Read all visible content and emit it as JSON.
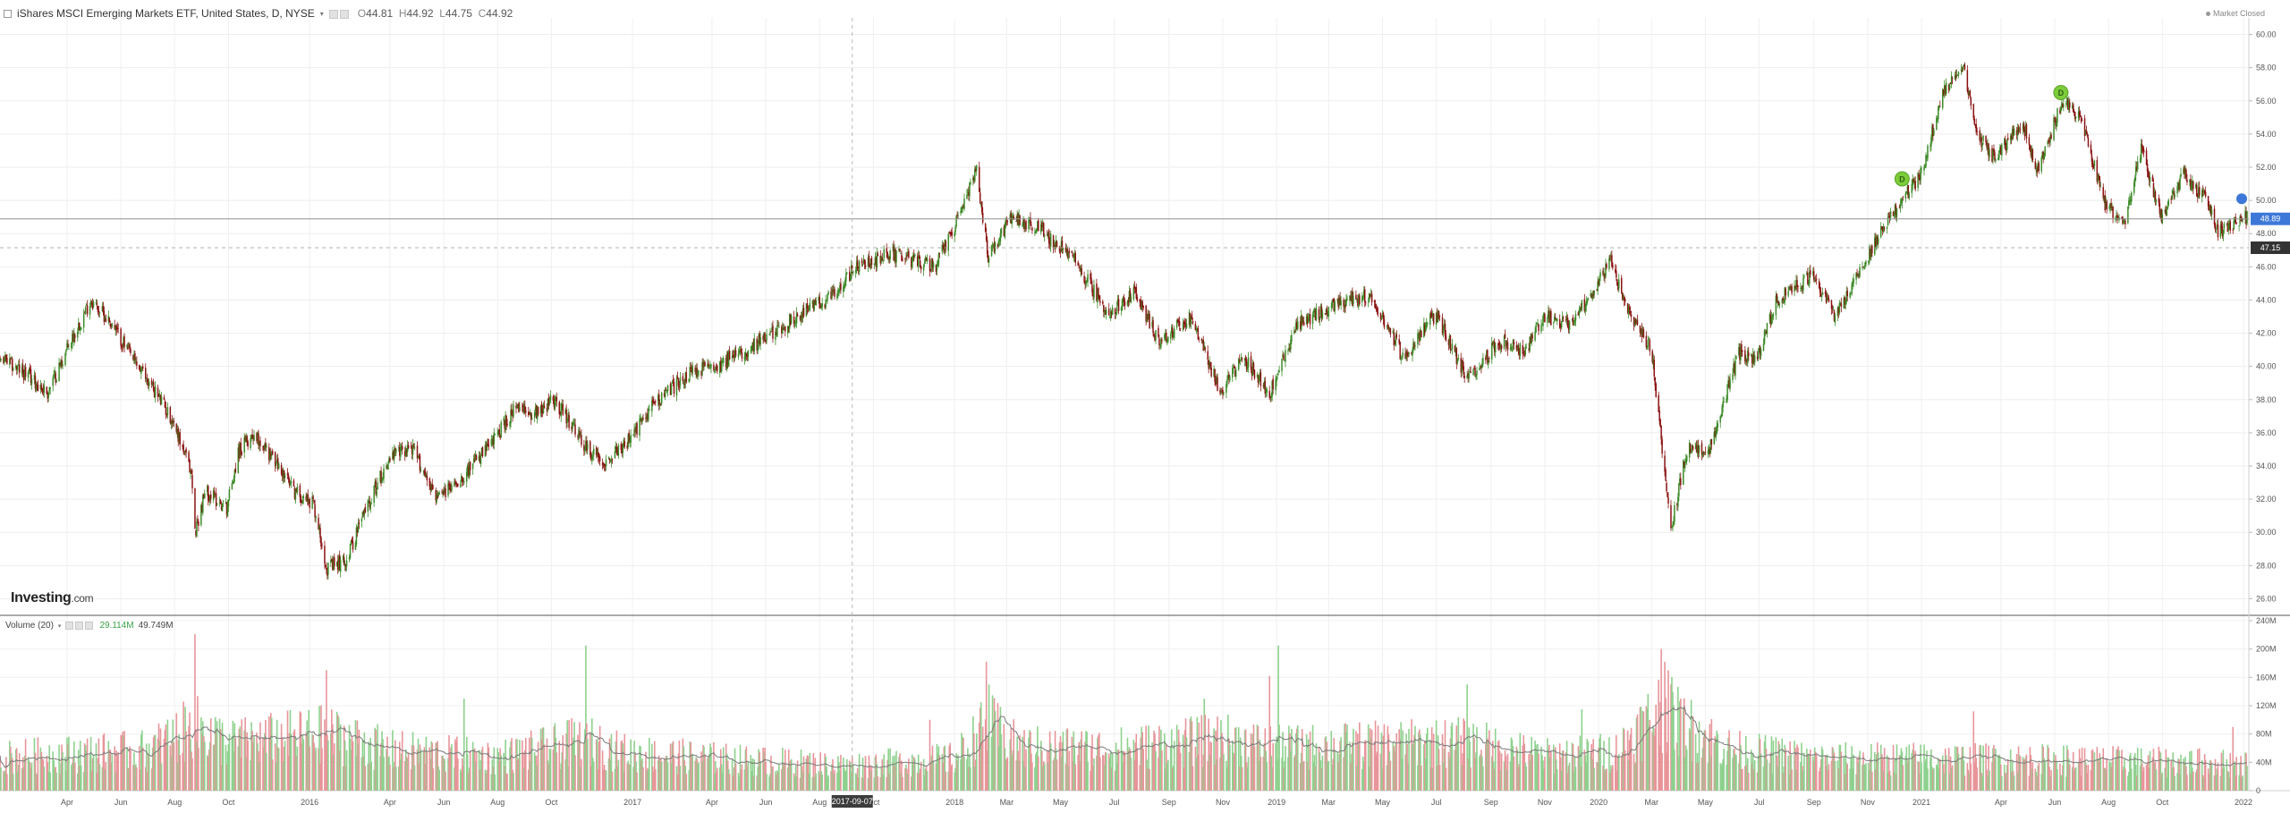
{
  "header": {
    "symbol": "iShares MSCI Emerging Markets ETF, United States, D, NYSE",
    "open_label": "O",
    "open": "44.81",
    "high_label": "H",
    "high": "44.92",
    "low_label": "L",
    "low": "44.75",
    "close_label": "C",
    "close": "44.92"
  },
  "market_status": "Market Closed",
  "logo": {
    "main": "Investing",
    "suffix": ".com"
  },
  "volume_header": {
    "label": "Volume (20)",
    "value1": "29.114M",
    "value2": "49.749M"
  },
  "price_tags": {
    "last": "48.89",
    "ref": "47.15"
  },
  "crosshair_date": "2017-09-07",
  "dividend_badges": [
    "D",
    "D"
  ],
  "colors": {
    "up": "#3b8a27",
    "down": "#8b1212",
    "vol_up": "#8fd18f",
    "vol_down": "#e8959a",
    "accent": "#3d78d8"
  },
  "chart_data": [
    {
      "type": "candlestick",
      "title": "iShares MSCI Emerging Markets ETF, United States, D, NYSE",
      "x_range": [
        "2015-01-15",
        "2022-01-05"
      ],
      "ylim": [
        25,
        61
      ],
      "y_ticks": [
        "26.00",
        "28.00",
        "30.00",
        "32.00",
        "34.00",
        "36.00",
        "38.00",
        "40.00",
        "42.00",
        "44.00",
        "46.00",
        "48.00",
        "50.00",
        "52.00",
        "54.00",
        "56.00",
        "58.00",
        "60.00"
      ],
      "x_tick_labels": [
        {
          "label": "Apr",
          "date": "2015-04-01"
        },
        {
          "label": "Jun",
          "date": "2015-06-01"
        },
        {
          "label": "Aug",
          "date": "2015-08-01"
        },
        {
          "label": "Oct",
          "date": "2015-10-01"
        },
        {
          "label": "2016",
          "date": "2016-01-01"
        },
        {
          "label": "Apr",
          "date": "2016-04-01"
        },
        {
          "label": "Jun",
          "date": "2016-06-01"
        },
        {
          "label": "Aug",
          "date": "2016-08-01"
        },
        {
          "label": "Oct",
          "date": "2016-10-01"
        },
        {
          "label": "2017",
          "date": "2017-01-01"
        },
        {
          "label": "Apr",
          "date": "2017-04-01"
        },
        {
          "label": "Jun",
          "date": "2017-06-01"
        },
        {
          "label": "Aug",
          "date": "2017-08-01"
        },
        {
          "label": "Oct",
          "date": "2017-10-01"
        },
        {
          "label": "2018",
          "date": "2018-01-01"
        },
        {
          "label": "Mar",
          "date": "2018-03-01"
        },
        {
          "label": "May",
          "date": "2018-05-01"
        },
        {
          "label": "Jul",
          "date": "2018-07-01"
        },
        {
          "label": "Sep",
          "date": "2018-09-01"
        },
        {
          "label": "Nov",
          "date": "2018-11-01"
        },
        {
          "label": "2019",
          "date": "2019-01-01"
        },
        {
          "label": "Mar",
          "date": "2019-03-01"
        },
        {
          "label": "May",
          "date": "2019-05-01"
        },
        {
          "label": "Jul",
          "date": "2019-07-01"
        },
        {
          "label": "Sep",
          "date": "2019-09-01"
        },
        {
          "label": "Nov",
          "date": "2019-11-01"
        },
        {
          "label": "2020",
          "date": "2020-01-01"
        },
        {
          "label": "Mar",
          "date": "2020-03-01"
        },
        {
          "label": "May",
          "date": "2020-05-01"
        },
        {
          "label": "Jul",
          "date": "2020-07-01"
        },
        {
          "label": "Sep",
          "date": "2020-09-01"
        },
        {
          "label": "Nov",
          "date": "2020-11-01"
        },
        {
          "label": "2021",
          "date": "2021-01-01"
        },
        {
          "label": "Apr",
          "date": "2021-04-01"
        },
        {
          "label": "Jun",
          "date": "2021-06-01"
        },
        {
          "label": "Aug",
          "date": "2021-08-01"
        },
        {
          "label": "Oct",
          "date": "2021-10-01"
        },
        {
          "label": "2022",
          "date": "2022-01-01"
        }
      ],
      "price_path": [
        [
          "2015-01-15",
          40.5
        ],
        [
          "2015-02-15",
          39.5
        ],
        [
          "2015-03-10",
          38.4
        ],
        [
          "2015-04-05",
          41.5
        ],
        [
          "2015-04-28",
          44.0
        ],
        [
          "2015-05-20",
          42.7
        ],
        [
          "2015-06-15",
          40.4
        ],
        [
          "2015-07-10",
          38.5
        ],
        [
          "2015-08-01",
          36.5
        ],
        [
          "2015-08-20",
          33.5
        ],
        [
          "2015-08-24",
          30.0
        ],
        [
          "2015-09-05",
          32.5
        ],
        [
          "2015-09-29",
          31.5
        ],
        [
          "2015-10-12",
          34.8
        ],
        [
          "2015-10-30",
          36.0
        ],
        [
          "2015-11-20",
          34.5
        ],
        [
          "2015-12-14",
          32.5
        ],
        [
          "2016-01-05",
          31.8
        ],
        [
          "2016-01-21",
          27.8
        ],
        [
          "2016-02-11",
          28.3
        ],
        [
          "2016-03-05",
          31.5
        ],
        [
          "2016-04-01",
          34.5
        ],
        [
          "2016-04-25",
          35.2
        ],
        [
          "2016-05-25",
          32.0
        ],
        [
          "2016-06-24",
          33.5
        ],
        [
          "2016-07-20",
          35.0
        ],
        [
          "2016-08-20",
          37.4
        ],
        [
          "2016-09-10",
          37.2
        ],
        [
          "2016-10-05",
          38.0
        ],
        [
          "2016-11-10",
          35.0
        ],
        [
          "2016-12-01",
          34.3
        ],
        [
          "2016-12-28",
          35.5
        ],
        [
          "2017-01-25",
          37.8
        ],
        [
          "2017-03-05",
          39.5
        ],
        [
          "2017-04-10",
          40.2
        ],
        [
          "2017-05-10",
          41.0
        ],
        [
          "2017-06-15",
          42.2
        ],
        [
          "2017-07-20",
          43.5
        ],
        [
          "2017-08-15",
          44.2
        ],
        [
          "2017-09-07",
          45.8
        ],
        [
          "2017-10-20",
          46.8
        ],
        [
          "2017-12-10",
          46.0
        ],
        [
          "2018-01-10",
          49.5
        ],
        [
          "2018-01-26",
          51.8
        ],
        [
          "2018-02-08",
          46.5
        ],
        [
          "2018-03-05",
          49.0
        ],
        [
          "2018-04-10",
          48.2
        ],
        [
          "2018-05-15",
          46.5
        ],
        [
          "2018-06-25",
          43.2
        ],
        [
          "2018-07-25",
          44.5
        ],
        [
          "2018-08-20",
          41.5
        ],
        [
          "2018-09-25",
          43.0
        ],
        [
          "2018-10-29",
          38.5
        ],
        [
          "2018-11-25",
          40.5
        ],
        [
          "2018-12-24",
          38.4
        ],
        [
          "2019-01-25",
          42.5
        ],
        [
          "2019-03-01",
          43.5
        ],
        [
          "2019-04-17",
          44.3
        ],
        [
          "2019-05-25",
          40.5
        ],
        [
          "2019-07-01",
          43.2
        ],
        [
          "2019-08-05",
          39.2
        ],
        [
          "2019-09-10",
          41.5
        ],
        [
          "2019-10-10",
          41.0
        ],
        [
          "2019-11-01",
          43.0
        ],
        [
          "2019-12-01",
          42.5
        ],
        [
          "2020-01-15",
          46.3
        ],
        [
          "2020-02-01",
          43.5
        ],
        [
          "2020-03-01",
          41.0
        ],
        [
          "2020-03-23",
          30.2
        ],
        [
          "2020-04-10",
          35.0
        ],
        [
          "2020-05-05",
          35.0
        ],
        [
          "2020-06-08",
          40.8
        ],
        [
          "2020-06-30",
          40.5
        ],
        [
          "2020-07-20",
          44.0
        ],
        [
          "2020-08-31",
          45.5
        ],
        [
          "2020-09-25",
          43.0
        ],
        [
          "2020-10-25",
          46.0
        ],
        [
          "2020-11-25",
          49.0
        ],
        [
          "2020-12-31",
          51.5
        ],
        [
          "2021-01-25",
          56.5
        ],
        [
          "2021-02-17",
          58.2
        ],
        [
          "2021-03-05",
          54.0
        ],
        [
          "2021-03-25",
          52.5
        ],
        [
          "2021-04-25",
          54.8
        ],
        [
          "2021-05-12",
          51.8
        ],
        [
          "2021-06-10",
          56.0
        ],
        [
          "2021-06-30",
          55.0
        ],
        [
          "2021-07-28",
          49.8
        ],
        [
          "2021-08-19",
          48.5
        ],
        [
          "2021-09-07",
          53.2
        ],
        [
          "2021-09-30",
          49.0
        ],
        [
          "2021-10-25",
          51.5
        ],
        [
          "2021-11-20",
          50.0
        ],
        [
          "2021-12-03",
          48.2
        ],
        [
          "2021-12-20",
          48.5
        ],
        [
          "2022-01-05",
          49.0
        ]
      ],
      "last_price": 48.89,
      "reference_price": 47.15,
      "dividend_markers": [
        [
          "2020-12-10",
          51.3
        ],
        [
          "2021-06-08",
          56.5
        ]
      ]
    },
    {
      "type": "bar",
      "title": "Volume (20)",
      "ylim": [
        0,
        245
      ],
      "y_unit": "M",
      "y_ticks": [
        "0",
        "40M",
        "80M",
        "120M",
        "160M",
        "200M",
        "240M"
      ],
      "volume_base": [
        [
          "2015-01-15",
          48
        ],
        [
          "2015-07-01",
          58
        ],
        [
          "2015-08-24",
          92
        ],
        [
          "2015-10-01",
          68
        ],
        [
          "2016-01-20",
          82
        ],
        [
          "2016-04-01",
          58
        ],
        [
          "2016-08-01",
          48
        ],
        [
          "2016-11-09",
          72
        ],
        [
          "2016-12-20",
          55
        ],
        [
          "2017-05-01",
          44
        ],
        [
          "2017-09-01",
          36
        ],
        [
          "2018-01-01",
          46
        ],
        [
          "2018-02-08",
          95
        ],
        [
          "2018-03-15",
          62
        ],
        [
          "2018-07-01",
          60
        ],
        [
          "2018-10-29",
          74
        ],
        [
          "2019-01-01",
          62
        ],
        [
          "2019-08-05",
          70
        ],
        [
          "2019-11-01",
          50
        ],
        [
          "2020-01-20",
          56
        ],
        [
          "2020-03-12",
          118
        ],
        [
          "2020-04-10",
          92
        ],
        [
          "2020-06-01",
          58
        ],
        [
          "2020-09-01",
          46
        ],
        [
          "2021-01-01",
          46
        ],
        [
          "2021-06-01",
          44
        ],
        [
          "2021-12-01",
          40
        ],
        [
          "2022-01-05",
          38
        ]
      ],
      "volume_spikes": [
        [
          "2015-08-24",
          221
        ],
        [
          "2016-01-20",
          170
        ],
        [
          "2016-06-24",
          130
        ],
        [
          "2016-11-09",
          205
        ],
        [
          "2017-12-04",
          100
        ],
        [
          "2018-02-06",
          182
        ],
        [
          "2018-02-09",
          150
        ],
        [
          "2018-10-11",
          130
        ],
        [
          "2018-12-24",
          162
        ],
        [
          "2019-01-03",
          205
        ],
        [
          "2019-08-05",
          150
        ],
        [
          "2019-12-13",
          115
        ],
        [
          "2020-03-12",
          200
        ],
        [
          "2020-03-16",
          182
        ],
        [
          "2020-03-20",
          170
        ],
        [
          "2020-03-23",
          150
        ],
        [
          "2021-03-01",
          112
        ],
        [
          "2021-12-20",
          90
        ]
      ]
    }
  ]
}
